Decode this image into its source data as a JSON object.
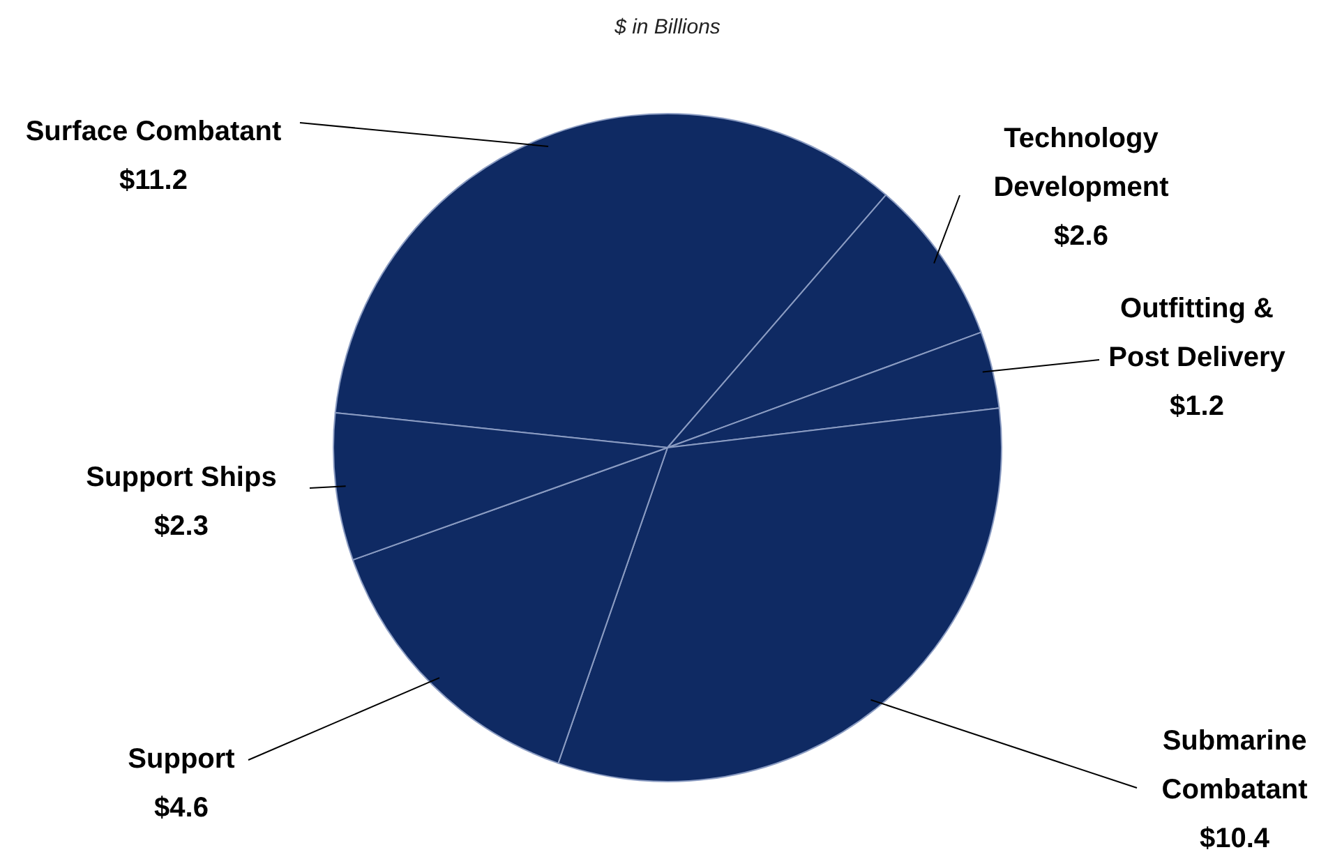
{
  "chart_data": {
    "type": "pie",
    "subtitle": "$ in Billions",
    "categories": [
      "Surface Combatant",
      "Technology Development",
      "Outfitting & Post Delivery",
      "Submarine Combatant",
      "Support",
      "Support Ships"
    ],
    "values": [
      11.2,
      2.6,
      1.2,
      10.4,
      4.6,
      2.3
    ],
    "value_labels": [
      "$11.2",
      "$2.6",
      "$1.2",
      "$10.4",
      "$4.6",
      "$2.3"
    ],
    "colors": [
      "#0f2a63",
      "#0f2a63",
      "#0f2a63",
      "#0f2a63",
      "#0f2a63",
      "#0f2a63"
    ],
    "legend": false
  }
}
